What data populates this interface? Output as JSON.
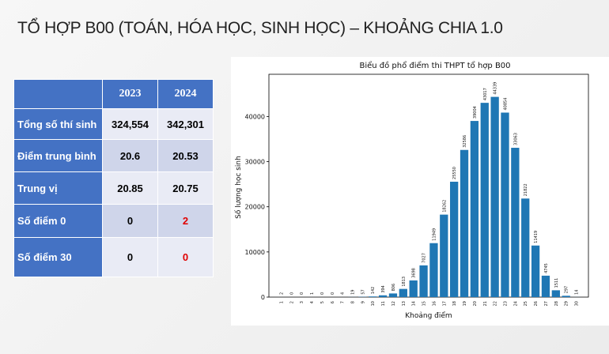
{
  "header": {
    "title": "TỔ HỢP B00 (TOÁN, HÓA HỌC, SINH HỌC) – KHOẢNG CHIA 1.0"
  },
  "table": {
    "columns": [
      "2023",
      "2024"
    ],
    "rows": [
      [
        "Tổng số thí sinh",
        "324,554",
        "342,301"
      ],
      [
        "Điểm trung bình",
        "20.6",
        "20.53"
      ],
      [
        "Trung vị",
        "20.85",
        "20.75"
      ],
      [
        "Số điểm 0",
        "0",
        "2"
      ],
      [
        "Số điểm 30",
        "0",
        "0"
      ]
    ]
  },
  "chart_data": {
    "type": "bar",
    "title": "Biểu đồ phổ điểm thi THPT tổ hợp B00",
    "x_label": "Khoảng điểm",
    "y_label": "Số lượng học sinh",
    "categories": [
      "1",
      "2",
      "3",
      "4",
      "5",
      "6",
      "7",
      "8",
      "9",
      "10",
      "11",
      "12",
      "13",
      "14",
      "15",
      "16",
      "17",
      "18",
      "19",
      "20",
      "21",
      "22",
      "23",
      "24",
      "25",
      "26",
      "27",
      "28",
      "29",
      "30"
    ],
    "values": [
      2,
      0,
      0,
      1,
      0,
      0,
      4,
      19,
      57,
      142,
      394,
      806,
      1813,
      3698,
      7027,
      11949,
      18262,
      25550,
      32586,
      39004,
      43017,
      44339,
      40854,
      33063,
      21822,
      11419,
      4745,
      1511,
      297,
      14
    ],
    "color": "#1f77b4",
    "ylim": [
      0,
      49340
    ],
    "yticks": [
      0,
      10000,
      20000,
      30000,
      40000
    ]
  }
}
